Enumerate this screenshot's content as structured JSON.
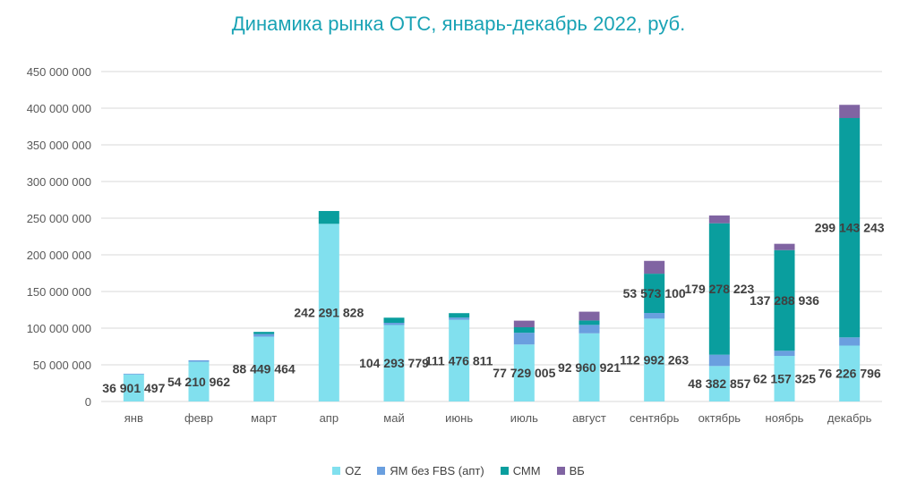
{
  "chart_data": {
    "type": "bar",
    "stacked": true,
    "title": "Динамика рынка ОТС, январь-декабрь 2022, руб.",
    "xlabel": "",
    "ylabel": "",
    "ylim": [
      0,
      450000000
    ],
    "yticks": [
      0,
      50000000,
      100000000,
      150000000,
      200000000,
      250000000,
      300000000,
      350000000,
      400000000,
      450000000
    ],
    "ytick_labels": [
      "0",
      "50 000 000",
      "100 000 000",
      "150 000 000",
      "200 000 000",
      "250 000 000",
      "300 000 000",
      "350 000 000",
      "400 000 000",
      "450 000 000"
    ],
    "grid": true,
    "legend_position": "bottom",
    "categories": [
      "янв",
      "февр",
      "март",
      "апр",
      "май",
      "июнь",
      "июль",
      "август",
      "сентябрь",
      "октябрь",
      "ноябрь",
      "декабрь"
    ],
    "series": [
      {
        "name": "OZ",
        "color": "#81e0ee",
        "values": [
          36901497,
          54210962,
          88449464,
          242291828,
          104293779,
          111476811,
          77729005,
          92960921,
          112992263,
          48382857,
          62157325,
          76226796
        ],
        "labels": [
          "36 901 497",
          "54 210 962",
          "88 449 464",
          "242 291 828",
          "104 293 779",
          "111 476 811",
          "77 729 005",
          "92 960 921",
          "112 992 263",
          "48 382 857",
          "62 157 325",
          "76 226 796"
        ]
      },
      {
        "name": "ЯМ без FBS (апт)",
        "color": "#6a9fdf",
        "values": [
          1000000,
          2000000,
          3500000,
          0,
          3000000,
          3000000,
          16000000,
          11500000,
          7700000,
          15400000,
          7000000,
          11200000
        ]
      },
      {
        "name": "СММ",
        "color": "#0a9e9e",
        "values": [
          0,
          0,
          3000000,
          17500000,
          7000000,
          6000000,
          7500000,
          6000000,
          53573100,
          179278223,
          137288936,
          299143243
        ],
        "labels": [
          null,
          null,
          null,
          null,
          null,
          null,
          null,
          null,
          "53 573 100",
          "179 278 223",
          "137 288 936",
          "299 143 243"
        ]
      },
      {
        "name": "ВБ",
        "color": "#8064a2",
        "values": [
          0,
          0,
          0,
          0,
          0,
          0,
          9000000,
          12000000,
          17500000,
          10600000,
          8600000,
          18000000
        ]
      }
    ]
  }
}
